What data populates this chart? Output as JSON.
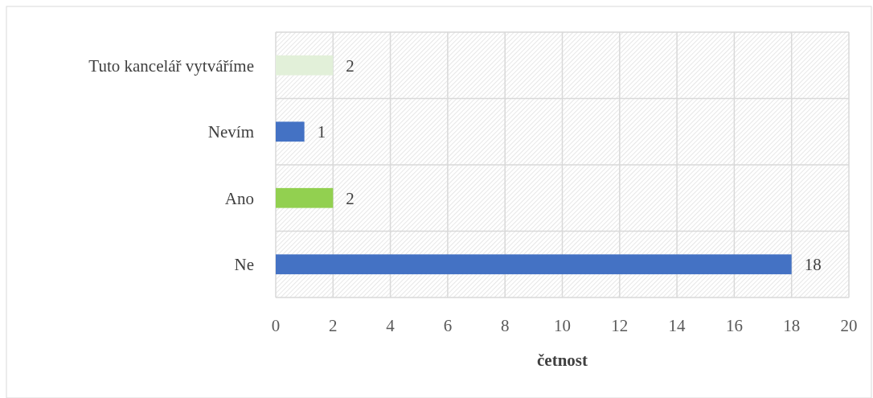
{
  "chart_data": {
    "type": "bar",
    "orientation": "horizontal",
    "xlabel": "četnost",
    "categories": [
      "Tuto kancelář vytváříme",
      "Nevím",
      "Ano",
      "Ne"
    ],
    "values": [
      2,
      1,
      2,
      18
    ],
    "colors": [
      "#e2f0d9",
      "#4472c4",
      "#92d050",
      "#4472c4"
    ],
    "xlim": [
      0,
      20
    ],
    "xticks": [
      0,
      2,
      4,
      6,
      8,
      10,
      12,
      14,
      16,
      18,
      20
    ],
    "grid": true,
    "data_labels": true
  }
}
